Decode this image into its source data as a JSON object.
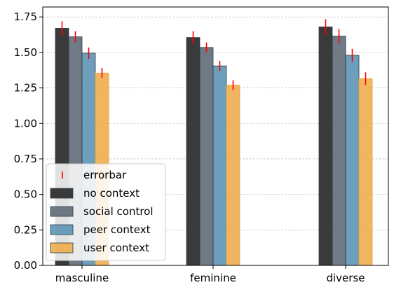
{
  "chart_data": {
    "type": "bar",
    "title": "",
    "xlabel": "",
    "ylabel": "",
    "ylim": [
      0,
      1.82
    ],
    "yticks": [
      0.0,
      0.25,
      0.5,
      0.75,
      1.0,
      1.25,
      1.5,
      1.75
    ],
    "ytick_labels": [
      "0.00",
      "0.25",
      "0.50",
      "0.75",
      "1.00",
      "1.25",
      "1.50",
      "1.75"
    ],
    "grid": "horizontal dashed",
    "legend_placement": "lower-left",
    "categories": [
      "masculine",
      "feminine",
      "diverse"
    ],
    "errorbar_label": "errorbar",
    "errorbar_color": "#ff0000",
    "series": [
      {
        "name": "no context",
        "color": "#3a3a3a",
        "values": [
          1.67,
          1.605,
          1.68
        ],
        "errors": [
          0.05,
          0.045,
          0.055
        ]
      },
      {
        "name": "social control",
        "color": "#5f6b77",
        "values": [
          1.61,
          1.535,
          1.615
        ],
        "errors": [
          0.04,
          0.035,
          0.05
        ]
      },
      {
        "name": "peer context",
        "color": "#5d93b5",
        "values": [
          1.495,
          1.405,
          1.48
        ],
        "errors": [
          0.04,
          0.035,
          0.045
        ]
      },
      {
        "name": "user context",
        "color": "#f0ad4e",
        "values": [
          1.355,
          1.27,
          1.315
        ],
        "errors": [
          0.035,
          0.035,
          0.045
        ]
      }
    ]
  }
}
